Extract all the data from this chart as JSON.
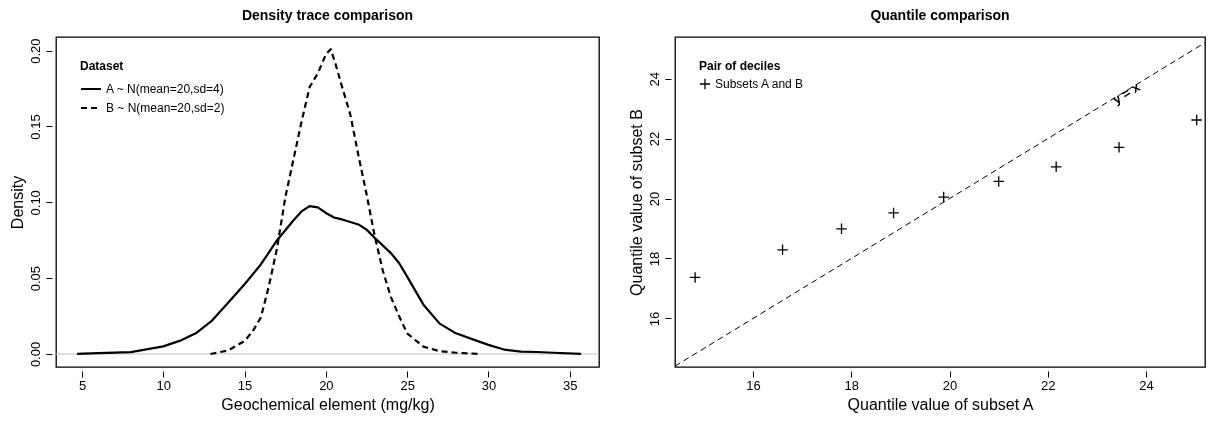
{
  "chart_data": [
    {
      "type": "line",
      "title": "Density trace comparison",
      "xlabel": "Geochemical element (mg/kg)",
      "ylabel": "Density",
      "legend_title": "Dataset",
      "legend": "top left",
      "xlim": [
        3.4,
        36.8
      ],
      "ylim": [
        -0.0086,
        0.209
      ],
      "xticks": [
        5,
        10,
        15,
        20,
        25,
        30,
        35
      ],
      "yticks": [
        {
          "value": 0,
          "label": "0.00"
        },
        {
          "value": 0.05,
          "label": "0.05"
        },
        {
          "value": 0.1,
          "label": "0.10"
        },
        {
          "value": 0.15,
          "label": "0.15"
        },
        {
          "value": 0.2,
          "label": "0.20"
        }
      ],
      "ref_lines": [
        {
          "axis": "y",
          "value": 0,
          "color": "#bebebe"
        }
      ],
      "series": [
        {
          "name": "A ~ N(mean=20,sd=4)",
          "color": "#000000",
          "line_style": "solid",
          "x": [
            4.7,
            6,
            8,
            10,
            11,
            12,
            13,
            14,
            15,
            16,
            17,
            18,
            18.5,
            19,
            19.5,
            20,
            20.5,
            21,
            22,
            22.5,
            23,
            24,
            24.5,
            25,
            26,
            27,
            28,
            29,
            30,
            31,
            32,
            33,
            34,
            35.7
          ],
          "values": [
            0,
            0.0005,
            0.0012,
            0.005,
            0.0086,
            0.0136,
            0.022,
            0.034,
            0.046,
            0.059,
            0.075,
            0.088,
            0.094,
            0.0975,
            0.0967,
            0.093,
            0.09,
            0.0887,
            0.0854,
            0.082,
            0.0766,
            0.0665,
            0.06,
            0.051,
            0.0325,
            0.02,
            0.0136,
            0.0098,
            0.006,
            0.0028,
            0.0015,
            0.0013,
            0.0008,
            0
          ]
        },
        {
          "name": "B ~ N(mean=20,sd=2)",
          "color": "#000000",
          "line_style": "dashed",
          "x": [
            12.9,
            14,
            15,
            15.5,
            16,
            16.5,
            17,
            17.5,
            18,
            18.5,
            19,
            19.5,
            20,
            20.3,
            20.6,
            21,
            21.5,
            22,
            22.5,
            23,
            23.5,
            24,
            24.5,
            25,
            26,
            27,
            28,
            29.5
          ],
          "values": [
            0,
            0.0023,
            0.0086,
            0.015,
            0.024,
            0.045,
            0.07,
            0.103,
            0.128,
            0.153,
            0.176,
            0.185,
            0.1975,
            0.201,
            0.191,
            0.176,
            0.158,
            0.131,
            0.1055,
            0.078,
            0.055,
            0.0375,
            0.025,
            0.0136,
            0.0048,
            0.0018,
            0.0008,
            0
          ]
        }
      ]
    },
    {
      "type": "scatter",
      "title": "Quantile comparison",
      "xlabel": "Quantile value of subset A",
      "ylabel": "Quantile value of subset B",
      "legend_title": "Pair of deciles",
      "legend": "top left",
      "xlim": [
        14.41,
        25.2
      ],
      "ylim": [
        14.38,
        25.39
      ],
      "xticks": [
        16,
        18,
        20,
        22,
        24
      ],
      "yticks": [
        16,
        18,
        20,
        22,
        24
      ],
      "annotations": [
        {
          "text": "y = x",
          "x": 23.6,
          "y": 23.5
        }
      ],
      "series": [
        {
          "name": "Subsets A and B",
          "color": "#000000",
          "marker": "cross",
          "x": [
            14.82,
            16.6,
            17.8,
            18.86,
            19.88,
            21.0,
            22.17,
            23.45,
            25.03
          ],
          "values": [
            17.37,
            18.29,
            18.99,
            19.52,
            20.05,
            20.57,
            21.06,
            21.71,
            22.62
          ]
        },
        {
          "type": "line",
          "color": "#000000",
          "line_style": "dashed",
          "x": [
            14.41,
            25.2
          ],
          "values": [
            14.41,
            25.2
          ]
        }
      ]
    }
  ]
}
